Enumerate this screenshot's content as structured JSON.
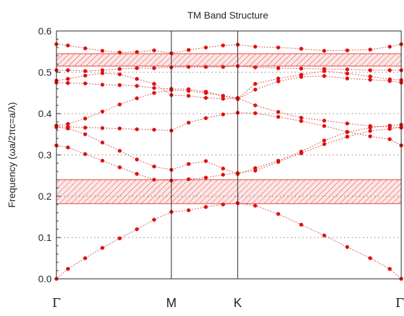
{
  "chart_data": {
    "type": "scatter",
    "title": "TM Band Structure",
    "xlabel": "",
    "ylabel": "Frequency (ωa/2πc=a/λ)",
    "ylim": [
      0,
      0.6
    ],
    "yticks": [
      "0.0",
      "0.1",
      "0.2",
      "0.3",
      "0.4",
      "0.5",
      "0.6"
    ],
    "gridlines_y": [
      0.1,
      0.2,
      0.3,
      0.4,
      0.5
    ],
    "grid": "dotted horizontal",
    "x_range": [
      0,
      3.0
    ],
    "kpoints": [
      {
        "label": "Γ",
        "x": 0
      },
      {
        "label": "M",
        "x": 1.0
      },
      {
        "label": "K",
        "x": 1.577
      },
      {
        "label": "Γ",
        "x": 3.0
      }
    ],
    "band_gaps": [
      {
        "from": 0.182,
        "to": 0.24
      },
      {
        "from": 0.515,
        "to": 0.545
      }
    ],
    "colors": {
      "points": "#e01010",
      "lines": "#e05050",
      "gap_fill": "#fde6e6",
      "gap_hatch": "#e04040",
      "frame": "#222222",
      "grid": "#777777"
    },
    "series": [
      {
        "values": [
          [
            0,
            0.0
          ],
          [
            0.1,
            0.024
          ],
          [
            0.25,
            0.05
          ],
          [
            0.4,
            0.075
          ],
          [
            0.55,
            0.098
          ],
          [
            0.7,
            0.12
          ],
          [
            0.85,
            0.143
          ],
          [
            1.0,
            0.162
          ],
          [
            1.15,
            0.166
          ],
          [
            1.3,
            0.174
          ],
          [
            1.45,
            0.18
          ],
          [
            1.577,
            0.183
          ],
          [
            1.73,
            0.177
          ],
          [
            1.93,
            0.157
          ],
          [
            2.13,
            0.131
          ],
          [
            2.33,
            0.105
          ],
          [
            2.53,
            0.077
          ],
          [
            2.73,
            0.05
          ],
          [
            2.9,
            0.024
          ],
          [
            3.0,
            0.0
          ]
        ]
      },
      {
        "values": [
          [
            0,
            0.323
          ],
          [
            0.1,
            0.318
          ],
          [
            0.25,
            0.302
          ],
          [
            0.4,
            0.286
          ],
          [
            0.55,
            0.27
          ],
          [
            0.7,
            0.254
          ],
          [
            0.85,
            0.24
          ],
          [
            1.0,
            0.238
          ],
          [
            1.15,
            0.241
          ],
          [
            1.3,
            0.245
          ],
          [
            1.45,
            0.252
          ],
          [
            1.577,
            0.256
          ],
          [
            1.73,
            0.262
          ],
          [
            1.93,
            0.283
          ],
          [
            2.13,
            0.304
          ],
          [
            2.33,
            0.326
          ],
          [
            2.53,
            0.344
          ],
          [
            2.73,
            0.358
          ],
          [
            2.9,
            0.363
          ],
          [
            3.0,
            0.367
          ]
        ]
      },
      {
        "values": [
          [
            0,
            0.367
          ],
          [
            0.1,
            0.364
          ],
          [
            0.25,
            0.35
          ],
          [
            0.4,
            0.33
          ],
          [
            0.55,
            0.31
          ],
          [
            0.7,
            0.289
          ],
          [
            0.85,
            0.272
          ],
          [
            1.0,
            0.264
          ],
          [
            1.15,
            0.278
          ],
          [
            1.3,
            0.285
          ],
          [
            1.45,
            0.267
          ],
          [
            1.577,
            0.254
          ],
          [
            1.73,
            0.268
          ],
          [
            1.93,
            0.286
          ],
          [
            2.13,
            0.308
          ],
          [
            2.33,
            0.335
          ],
          [
            2.53,
            0.355
          ],
          [
            2.73,
            0.366
          ],
          [
            2.9,
            0.371
          ],
          [
            3.0,
            0.373
          ]
        ]
      },
      {
        "values": [
          [
            0,
            0.369
          ],
          [
            0.1,
            0.368
          ],
          [
            0.25,
            0.366
          ],
          [
            0.4,
            0.365
          ],
          [
            0.55,
            0.364
          ],
          [
            0.7,
            0.362
          ],
          [
            0.85,
            0.361
          ],
          [
            1.0,
            0.359
          ],
          [
            1.15,
            0.378
          ],
          [
            1.3,
            0.389
          ],
          [
            1.45,
            0.398
          ],
          [
            1.577,
            0.402
          ],
          [
            1.73,
            0.401
          ],
          [
            1.93,
            0.392
          ],
          [
            2.13,
            0.382
          ],
          [
            2.33,
            0.37
          ],
          [
            2.53,
            0.356
          ],
          [
            2.73,
            0.345
          ],
          [
            2.9,
            0.338
          ],
          [
            3.0,
            0.323
          ]
        ]
      },
      {
        "values": [
          [
            0,
            0.371
          ],
          [
            0.1,
            0.375
          ],
          [
            0.25,
            0.388
          ],
          [
            0.4,
            0.405
          ],
          [
            0.55,
            0.422
          ],
          [
            0.7,
            0.437
          ],
          [
            0.85,
            0.45
          ],
          [
            1.0,
            0.457
          ],
          [
            1.15,
            0.455
          ],
          [
            1.3,
            0.45
          ],
          [
            1.45,
            0.443
          ],
          [
            1.577,
            0.438
          ],
          [
            1.73,
            0.42
          ],
          [
            1.93,
            0.404
          ],
          [
            2.13,
            0.39
          ],
          [
            2.33,
            0.383
          ],
          [
            2.53,
            0.376
          ],
          [
            2.73,
            0.37
          ],
          [
            2.9,
            0.368
          ],
          [
            3.0,
            0.366
          ]
        ]
      },
      {
        "values": [
          [
            0,
            0.475
          ],
          [
            0.1,
            0.474
          ],
          [
            0.25,
            0.473
          ],
          [
            0.4,
            0.47
          ],
          [
            0.55,
            0.469
          ],
          [
            0.7,
            0.467
          ],
          [
            0.85,
            0.462
          ],
          [
            1.0,
            0.46
          ],
          [
            1.15,
            0.459
          ],
          [
            1.3,
            0.453
          ],
          [
            1.45,
            0.443
          ],
          [
            1.577,
            0.435
          ],
          [
            1.73,
            0.458
          ],
          [
            1.93,
            0.478
          ],
          [
            2.13,
            0.489
          ],
          [
            2.33,
            0.491
          ],
          [
            2.53,
            0.485
          ],
          [
            2.73,
            0.482
          ],
          [
            2.9,
            0.479
          ],
          [
            3.0,
            0.475
          ]
        ]
      },
      {
        "values": [
          [
            0,
            0.48
          ],
          [
            0.1,
            0.484
          ],
          [
            0.25,
            0.492
          ],
          [
            0.4,
            0.498
          ],
          [
            0.55,
            0.495
          ],
          [
            0.7,
            0.484
          ],
          [
            0.85,
            0.472
          ],
          [
            1.0,
            0.445
          ],
          [
            1.15,
            0.443
          ],
          [
            1.3,
            0.438
          ],
          [
            1.45,
            0.436
          ],
          [
            1.577,
            0.436
          ],
          [
            1.73,
            0.472
          ],
          [
            1.93,
            0.485
          ],
          [
            2.13,
            0.494
          ],
          [
            2.33,
            0.503
          ],
          [
            2.53,
            0.497
          ],
          [
            2.73,
            0.49
          ],
          [
            2.9,
            0.483
          ],
          [
            3.0,
            0.481
          ]
        ]
      },
      {
        "values": [
          [
            0,
            0.505
          ],
          [
            0.1,
            0.505
          ],
          [
            0.25,
            0.503
          ],
          [
            0.4,
            0.505
          ],
          [
            0.55,
            0.508
          ],
          [
            0.7,
            0.51
          ],
          [
            0.85,
            0.51
          ],
          [
            1.0,
            0.512
          ],
          [
            1.15,
            0.513
          ],
          [
            1.3,
            0.513
          ],
          [
            1.45,
            0.513
          ],
          [
            1.577,
            0.515
          ],
          [
            1.73,
            0.512
          ],
          [
            1.93,
            0.51
          ],
          [
            2.13,
            0.509
          ],
          [
            2.33,
            0.508
          ],
          [
            2.53,
            0.507
          ],
          [
            2.73,
            0.505
          ],
          [
            2.9,
            0.505
          ],
          [
            3.0,
            0.505
          ]
        ]
      },
      {
        "values": [
          [
            0,
            0.568
          ],
          [
            0.1,
            0.565
          ],
          [
            0.25,
            0.558
          ],
          [
            0.4,
            0.552
          ],
          [
            0.55,
            0.548
          ],
          [
            0.7,
            0.549
          ],
          [
            0.85,
            0.553
          ],
          [
            1.0,
            0.546
          ],
          [
            1.15,
            0.554
          ],
          [
            1.3,
            0.56
          ],
          [
            1.45,
            0.565
          ],
          [
            1.577,
            0.567
          ],
          [
            1.73,
            0.562
          ],
          [
            1.93,
            0.56
          ],
          [
            2.13,
            0.557
          ],
          [
            2.33,
            0.552
          ],
          [
            2.53,
            0.553
          ],
          [
            2.73,
            0.555
          ],
          [
            2.9,
            0.562
          ],
          [
            3.0,
            0.568
          ]
        ]
      }
    ]
  }
}
